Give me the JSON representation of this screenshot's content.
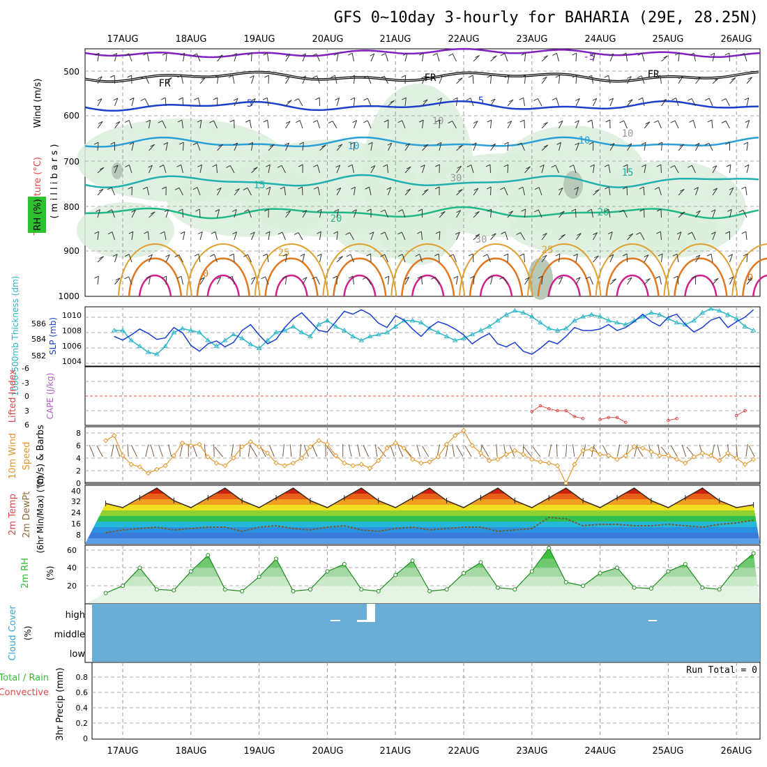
{
  "title": "GFS 0~10day 3-hourly for BAHARIA (29E, 28.25N)",
  "dates": [
    "17AUG",
    "18AUG",
    "19AUG",
    "20AUG",
    "21AUG",
    "22AUG",
    "23AUG",
    "24AUG",
    "25AUG",
    "26AUG"
  ],
  "panels": {
    "upper": {
      "label_wind": "Wind (m/s)",
      "label_temp": "Temperature (°C)",
      "label_rh": "RH (%)",
      "label_units": "( m i l l i b a r s )",
      "pressure_ticks": [
        "500",
        "600",
        "700",
        "800",
        "900",
        "1000"
      ],
      "contour_labels": {
        "fr": "FR",
        "t5": "5",
        "t10": "10",
        "t15": "15",
        "t20": "20",
        "t25": "25",
        "tm5": "-5",
        "rh10": "10",
        "rh30": "30",
        "rh0": "0"
      }
    },
    "pressure": {
      "label_thk": "1000-500mb Thickness (dm)",
      "label_slp": "SLP (mb)",
      "left_ticks": [
        "586",
        "584",
        "582"
      ],
      "right_ticks": [
        "1010",
        "1008",
        "1006",
        "1004"
      ]
    },
    "cape": {
      "label_li": "Lifted Index",
      "label_cape": "CAPE (J/kg)",
      "ticks": [
        "-6",
        "-3",
        "0",
        "3",
        "6"
      ]
    },
    "wind10m": {
      "label_a": "10m Wind",
      "label_b": "Speed",
      "label_c": "(m/s) & Barbs",
      "ticks": [
        "8",
        "6",
        "4",
        "2",
        "0"
      ]
    },
    "temp2m": {
      "label_a": "2m Temp",
      "label_b": "2m DewPt",
      "label_c": "(6hr Min/Max) (°C)",
      "ticks": [
        "40",
        "32",
        "24",
        "16",
        "8"
      ]
    },
    "rh2m": {
      "label": "2m RH",
      "unit": "(%)",
      "ticks": [
        "60",
        "40",
        "20"
      ]
    },
    "cloud": {
      "label": "Cloud Cover",
      "unit": "(%)",
      "levels": [
        "high",
        "middle",
        "low"
      ]
    },
    "precip": {
      "label_a": "Total / Rain",
      "label_b": "Convective",
      "label_c": "3hr Precip (mm)",
      "ticks": [
        "0.8",
        "0.6",
        "0.4",
        "0.2",
        "0"
      ],
      "run_total": "Run Total = 0"
    }
  },
  "colors": {
    "slp": "#1a3fcc",
    "thickness": "#2bb6c8",
    "wind": "#e0962c",
    "barb": "#7a5a3a",
    "rh": "#2ec02e",
    "cloud": "#6aaed6",
    "lifted_index": "#e04848"
  },
  "chart_data": [
    {
      "type": "line",
      "title": "SLP (mb) / 1000-500mb Thickness (dm)",
      "x": [
        "16 21Z",
        "17 00Z",
        "17 03Z",
        "17 06Z",
        "17 09Z",
        "17 12Z",
        "17 15Z",
        "17 18Z",
        "17 21Z",
        "18 00Z",
        "18 03Z",
        "18 06Z",
        "18 09Z",
        "18 12Z",
        "18 15Z",
        "18 18Z",
        "18 21Z",
        "19 00Z",
        "19 03Z",
        "19 06Z",
        "19 09Z",
        "19 12Z",
        "19 15Z",
        "19 18Z",
        "19 21Z",
        "20 00Z",
        "20 03Z",
        "20 06Z",
        "20 09Z",
        "20 12Z",
        "20 15Z",
        "20 18Z",
        "20 21Z",
        "21 00Z",
        "21 03Z",
        "21 06Z",
        "21 09Z",
        "21 12Z",
        "21 15Z",
        "21 18Z",
        "21 21Z",
        "22 00Z",
        "22 03Z",
        "22 06Z",
        "22 09Z",
        "22 12Z",
        "22 15Z",
        "22 18Z",
        "22 21Z",
        "23 00Z",
        "23 03Z",
        "23 06Z",
        "23 09Z",
        "23 12Z",
        "23 15Z",
        "23 18Z",
        "23 21Z",
        "24 00Z",
        "24 03Z",
        "24 06Z",
        "24 09Z",
        "24 12Z",
        "24 15Z",
        "24 18Z",
        "24 21Z",
        "25 00Z",
        "25 03Z",
        "25 06Z",
        "25 09Z",
        "25 12Z",
        "25 15Z",
        "25 18Z",
        "25 21Z",
        "26 00Z",
        "26 03Z",
        "26 06Z"
      ],
      "series": [
        {
          "name": "SLP (mb)",
          "values": [
            1007.0,
            1006.5,
            1007.2,
            1008.0,
            1007.4,
            1006.6,
            1006.8,
            1008.2,
            1007.5,
            1005.8,
            1005.0,
            1006.0,
            1006.4,
            1005.6,
            1006.2,
            1007.8,
            1008.6,
            1007.2,
            1006.0,
            1006.6,
            1008.2,
            1009.4,
            1010.2,
            1009.0,
            1007.8,
            1007.6,
            1009.0,
            1010.4,
            1010.0,
            1010.6,
            1010.0,
            1008.8,
            1008.2,
            1009.8,
            1009.2,
            1008.0,
            1007.0,
            1008.2,
            1009.0,
            1008.6,
            1008.0,
            1007.2,
            1006.0,
            1006.8,
            1007.4,
            1006.0,
            1005.6,
            1006.2,
            1005.0,
            1004.6,
            1005.4,
            1006.4,
            1006.0,
            1007.0,
            1008.2,
            1007.8,
            1007.8,
            1008.0,
            1008.6,
            1007.8,
            1008.2,
            1009.0,
            1010.0,
            1009.0,
            1008.4,
            1009.6,
            1010.0,
            1008.6,
            1007.6,
            1008.2,
            1009.2,
            1009.6,
            1008.2,
            1009.0,
            1009.6,
            1010.6
          ]
        },
        {
          "name": "1000-500mb Thickness (dm)",
          "values": [
            584.6,
            584.6,
            583.6,
            583.0,
            582.4,
            582.2,
            583.0,
            584.4,
            584.8,
            584.6,
            584.4,
            583.6,
            583.0,
            583.6,
            584.2,
            583.8,
            583.2,
            582.8,
            583.6,
            584.4,
            584.6,
            585.0,
            584.4,
            584.0,
            585.2,
            585.6,
            585.0,
            584.6,
            584.0,
            583.6,
            584.0,
            584.2,
            584.4,
            585.0,
            585.6,
            585.6,
            585.4,
            584.8,
            584.4,
            584.0,
            583.6,
            583.8,
            584.2,
            584.6,
            585.0,
            585.6,
            586.2,
            586.6,
            586.4,
            586.0,
            585.4,
            584.8,
            584.6,
            584.8,
            585.6,
            586.0,
            586.2,
            586.0,
            585.6,
            585.4,
            585.2,
            585.6,
            586.0,
            586.4,
            586.2,
            585.8,
            585.4,
            585.2,
            585.6,
            586.4,
            586.8,
            586.6,
            586.2,
            585.8,
            585.0,
            584.6
          ]
        }
      ],
      "ylim_left": [
        581,
        587
      ],
      "ylim_right": [
        1003,
        1011
      ]
    },
    {
      "type": "line",
      "title": "Lifted Index / CAPE (J/kg)",
      "x": [
        "23 00Z",
        "23 03Z",
        "23 06Z",
        "23 09Z",
        "23 12Z",
        "23 15Z",
        "23 18Z",
        "24 00Z",
        "24 03Z",
        "24 06Z",
        "24 09Z",
        "25 00Z",
        "25 03Z",
        "26 00Z",
        "26 03Z"
      ],
      "values": [
        3.2,
        2.0,
        2.6,
        3.0,
        3.0,
        4.2,
        4.6,
        4.8,
        4.4,
        4.4,
        5.4,
        5.0,
        4.6,
        4.0,
        3.0
      ],
      "ylim": [
        -6,
        6
      ]
    },
    {
      "type": "line",
      "title": "10m Wind Speed (m/s) & Barbs",
      "x": [
        "16 18Z",
        "16 21Z",
        "17 00Z",
        "17 03Z",
        "17 06Z",
        "17 09Z",
        "17 12Z",
        "17 15Z",
        "17 18Z",
        "17 21Z",
        "18 00Z",
        "18 03Z",
        "18 06Z",
        "18 09Z",
        "18 12Z",
        "18 15Z",
        "18 18Z",
        "18 21Z",
        "19 00Z",
        "19 03Z",
        "19 06Z",
        "19 09Z",
        "19 12Z",
        "19 15Z",
        "19 18Z",
        "19 21Z",
        "20 00Z",
        "20 03Z",
        "20 06Z",
        "20 09Z",
        "20 12Z",
        "20 15Z",
        "20 18Z",
        "20 21Z",
        "21 00Z",
        "21 03Z",
        "21 06Z",
        "21 09Z",
        "21 12Z",
        "21 15Z",
        "21 18Z",
        "21 21Z",
        "22 00Z",
        "22 03Z",
        "22 06Z",
        "22 09Z",
        "22 12Z",
        "22 15Z",
        "22 18Z",
        "22 21Z",
        "23 00Z",
        "23 03Z",
        "23 06Z",
        "23 09Z",
        "23 12Z",
        "23 15Z",
        "23 18Z",
        "23 21Z",
        "24 00Z",
        "24 03Z",
        "24 06Z",
        "24 09Z",
        "24 12Z",
        "24 15Z",
        "24 18Z",
        "24 21Z",
        "25 00Z",
        "25 03Z",
        "25 06Z",
        "25 09Z",
        "25 12Z",
        "25 15Z",
        "25 18Z",
        "25 21Z",
        "26 00Z",
        "26 03Z",
        "26 06Z"
      ],
      "values": [
        6.8,
        7.6,
        4.4,
        3.0,
        2.6,
        1.6,
        2.2,
        2.8,
        4.4,
        6.4,
        6.0,
        6.2,
        4.2,
        3.2,
        2.8,
        4.0,
        5.8,
        6.6,
        5.8,
        4.8,
        3.2,
        2.8,
        3.2,
        4.0,
        5.8,
        6.8,
        6.2,
        4.4,
        3.2,
        2.8,
        3.0,
        2.4,
        3.6,
        5.6,
        6.4,
        5.6,
        3.8,
        3.2,
        3.4,
        4.2,
        6.2,
        7.6,
        8.4,
        6.0,
        4.8,
        3.6,
        3.8,
        4.6,
        5.2,
        4.6,
        3.8,
        3.4,
        3.2,
        2.8,
        0.0,
        3.0,
        5.2,
        5.4,
        4.6,
        4.4,
        3.8,
        4.4,
        5.8,
        5.6,
        5.0,
        4.4,
        4.4,
        3.8,
        3.2,
        4.2,
        4.8,
        4.4,
        3.6,
        4.8,
        4.0,
        3.0,
        3.8
      ],
      "ylim": [
        0,
        9
      ]
    },
    {
      "type": "area",
      "title": "2m Temp / 2m DewPt (6hr Min/Max) (°C)",
      "x": [
        "16 18Z",
        "17 00Z",
        "17 06Z",
        "17 12Z",
        "17 18Z",
        "18 00Z",
        "18 06Z",
        "18 12Z",
        "18 18Z",
        "19 00Z",
        "19 06Z",
        "19 12Z",
        "19 18Z",
        "20 00Z",
        "20 06Z",
        "20 12Z",
        "20 18Z",
        "21 00Z",
        "21 06Z",
        "21 12Z",
        "21 18Z",
        "22 00Z",
        "22 06Z",
        "22 12Z",
        "22 18Z",
        "23 00Z",
        "23 06Z",
        "23 12Z",
        "23 18Z",
        "24 00Z",
        "24 06Z",
        "24 12Z",
        "24 18Z",
        "25 00Z",
        "25 06Z",
        "25 12Z",
        "25 18Z",
        "26 00Z",
        "26 06Z"
      ],
      "series": [
        {
          "name": "2m Temp",
          "values": [
            29,
            26,
            33,
            40,
            31,
            26,
            33,
            40,
            31,
            26,
            33,
            40,
            31,
            26,
            33,
            40,
            31,
            26,
            33,
            40,
            31,
            26,
            33,
            40,
            31,
            26,
            33,
            40,
            31,
            26,
            33,
            40,
            31,
            26,
            33,
            40,
            31,
            26,
            28
          ]
        },
        {
          "name": "2m DewPt",
          "values": [
            8,
            10,
            11,
            12,
            10,
            11,
            12,
            12,
            9,
            12,
            13,
            11,
            10,
            12,
            13,
            10,
            9,
            11,
            12,
            10,
            11,
            12,
            12,
            9,
            10,
            11,
            19,
            18,
            13,
            14,
            14,
            13,
            13,
            14,
            13,
            12,
            14,
            15,
            17
          ]
        }
      ],
      "ylim": [
        0,
        42
      ]
    },
    {
      "type": "area",
      "title": "2m RH (%)",
      "x": [
        "16 18Z",
        "17 00Z",
        "17 06Z",
        "17 12Z",
        "17 18Z",
        "18 00Z",
        "18 06Z",
        "18 12Z",
        "18 18Z",
        "19 00Z",
        "19 06Z",
        "19 12Z",
        "19 18Z",
        "20 00Z",
        "20 06Z",
        "20 12Z",
        "20 18Z",
        "21 00Z",
        "21 06Z",
        "21 12Z",
        "21 18Z",
        "22 00Z",
        "22 06Z",
        "22 12Z",
        "22 18Z",
        "23 00Z",
        "23 06Z",
        "23 12Z",
        "23 18Z",
        "24 00Z",
        "24 06Z",
        "24 12Z",
        "24 18Z",
        "25 00Z",
        "25 06Z",
        "25 12Z",
        "25 18Z",
        "26 00Z",
        "26 06Z"
      ],
      "values": [
        12,
        20,
        40,
        16,
        15,
        36,
        54,
        16,
        14,
        30,
        50,
        14,
        16,
        36,
        44,
        16,
        14,
        32,
        48,
        14,
        16,
        34,
        46,
        18,
        16,
        36,
        62,
        24,
        20,
        34,
        40,
        18,
        17,
        36,
        44,
        18,
        16,
        40,
        56
      ],
      "ylim": [
        0,
        65
      ]
    },
    {
      "type": "bar",
      "title": "Cloud Cover (%)",
      "categories": [
        "high",
        "middle",
        "low"
      ],
      "values": [
        0,
        0,
        0
      ]
    },
    {
      "type": "bar",
      "title": "3hr Precip (mm)",
      "categories": [
        "Total / Rain",
        "Convective"
      ],
      "values": [
        0,
        0
      ],
      "ylim": [
        0,
        1
      ]
    }
  ]
}
